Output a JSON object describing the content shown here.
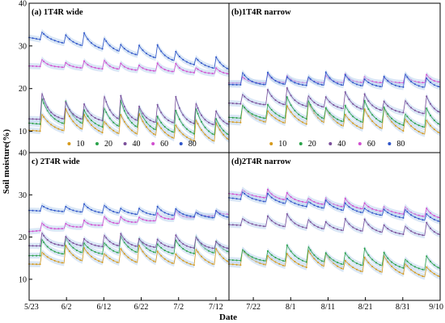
{
  "figure": {
    "xlabel": "Date",
    "ylabel": "Soil moisture(%)",
    "x_ticks": [
      "5/23",
      "6/2",
      "6/12",
      "6/22",
      "7/2",
      "7/12",
      "7/22",
      "8/1",
      "8/11",
      "8/21",
      "8/31",
      "9/10"
    ],
    "y_ticks": [
      "10",
      "20",
      "30",
      "40"
    ],
    "legend_entries": [
      "10",
      "20",
      "40",
      "60",
      "80"
    ]
  },
  "colors": {
    "s10": "#d69a1c",
    "s20": "#2aa24a",
    "s40": "#7a4f9a",
    "s60": "#d14fd0",
    "s80": "#2f55c8",
    "band": "#bcd4ee"
  },
  "chart_data": [
    {
      "type": "line",
      "title": "(a) 1T4R wide",
      "xlabel": "Date",
      "ylabel": "Soil moisture(%)",
      "x_start": "5/23",
      "x_end": "9/10",
      "ylim": [
        5,
        40
      ],
      "legend": "bottom",
      "series": [
        {
          "name": "10",
          "start": 12,
          "trend": -4,
          "amp": 5,
          "decay": 6
        },
        {
          "name": "20",
          "start": 14,
          "trend": -4,
          "amp": 6,
          "decay": 5
        },
        {
          "name": "40",
          "start": 15,
          "trend": -2,
          "amp": 6,
          "decay": 4
        },
        {
          "name": "60",
          "start": 26,
          "trend": -2,
          "amp": 2,
          "decay": 3
        },
        {
          "name": "80",
          "start": 33,
          "trend": -8,
          "amp": 3,
          "decay": 4
        }
      ]
    },
    {
      "type": "line",
      "title": "(b)1T4R narrow",
      "xlabel": "Date",
      "ylabel": "Soil moisture(%)",
      "x_start": "5/23",
      "x_end": "9/10",
      "ylim": [
        5,
        40
      ],
      "legend": "bottom",
      "series": [
        {
          "name": "10",
          "start": 14,
          "trend": -4,
          "amp": 5,
          "decay": 6
        },
        {
          "name": "20",
          "start": 15,
          "trend": -3,
          "amp": 5,
          "decay": 5
        },
        {
          "name": "40",
          "start": 18,
          "trend": -3,
          "amp": 4,
          "decay": 4
        },
        {
          "name": "60",
          "start": 22,
          "trend": 0,
          "amp": 2,
          "decay": 3
        },
        {
          "name": "80",
          "start": 22,
          "trend": -1,
          "amp": 3,
          "decay": 4
        }
      ]
    },
    {
      "type": "line",
      "title": "c) 2T4R wide",
      "xlabel": "Date",
      "ylabel": "Soil moisture(%)",
      "x_start": "5/23",
      "x_end": "9/10",
      "ylim": [
        5,
        40
      ],
      "legend": "",
      "series": [
        {
          "name": "10",
          "start": 15,
          "trend": -1,
          "amp": 4,
          "decay": 6
        },
        {
          "name": "20",
          "start": 17,
          "trend": 0,
          "amp": 4,
          "decay": 5
        },
        {
          "name": "40",
          "start": 19,
          "trend": -1,
          "amp": 3,
          "decay": 4
        },
        {
          "name": "60",
          "start": 22,
          "trend": 4,
          "amp": 2,
          "decay": 3
        },
        {
          "name": "80",
          "start": 27,
          "trend": -2,
          "amp": 2,
          "decay": 4
        }
      ]
    },
    {
      "type": "line",
      "title": "(d)2T4R narrow",
      "xlabel": "Date",
      "ylabel": "Soil moisture(%)",
      "x_start": "5/23",
      "x_end": "9/10",
      "ylim": [
        5,
        40
      ],
      "legend": "",
      "series": [
        {
          "name": "10",
          "start": 15,
          "trend": -4,
          "amp": 4,
          "decay": 6
        },
        {
          "name": "20",
          "start": 16,
          "trend": -3,
          "amp": 4,
          "decay": 5
        },
        {
          "name": "40",
          "start": 24,
          "trend": -3,
          "amp": 3,
          "decay": 4
        },
        {
          "name": "60",
          "start": 31,
          "trend": -6,
          "amp": 2,
          "decay": 3
        },
        {
          "name": "80",
          "start": 30,
          "trend": -6,
          "amp": 2,
          "decay": 4
        }
      ]
    }
  ]
}
